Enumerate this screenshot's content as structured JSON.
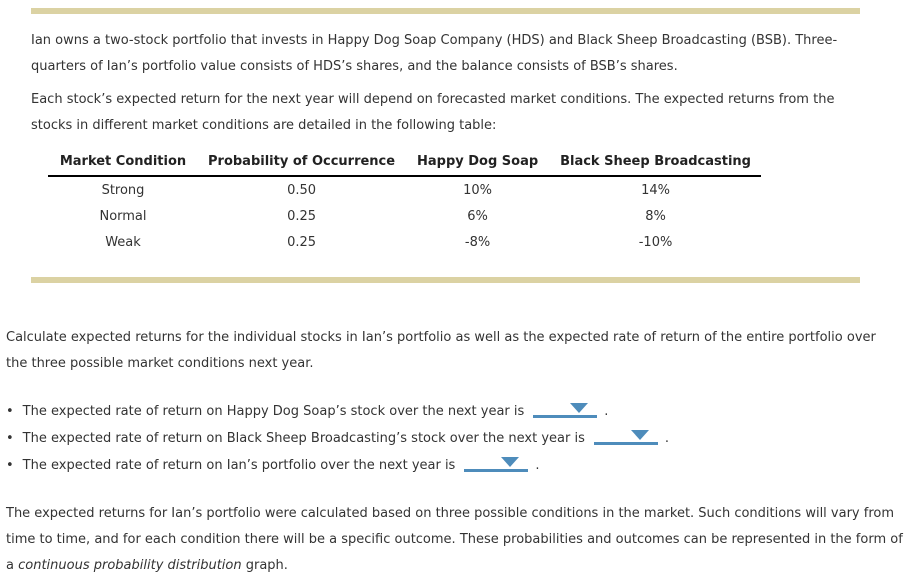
{
  "colors": {
    "divider_tan": "#dbd2a3",
    "dropdown_blue": "#4e8cbb",
    "text": "#333333"
  },
  "bullet_glyph": "•",
  "intro": {
    "p1": "Ian owns a two-stock portfolio that invests in Happy Dog Soap Company (HDS) and Black Sheep Broadcasting (BSB). Three-quarters of Ian’s portfolio value consists of HDS’s shares, and the balance consists of BSB’s shares.",
    "p2": "Each stock’s expected return for the next year will depend on forecasted market conditions. The expected returns from the stocks in different market conditions are detailed in the following table:"
  },
  "table": {
    "headers": [
      "Market Condition",
      "Probability of Occurrence",
      "Happy Dog Soap",
      "Black Sheep Broadcasting"
    ],
    "rows": [
      [
        "Strong",
        "0.50",
        "10%",
        "14%"
      ],
      [
        "Normal",
        "0.25",
        "6%",
        "8%"
      ],
      [
        "Weak",
        "0.25",
        "-8%",
        "-10%"
      ]
    ]
  },
  "question": {
    "prompt": "Calculate expected returns for the individual stocks in Ian’s portfolio as well as the expected rate of return of the entire portfolio over the three possible market conditions next year.",
    "bullets": [
      {
        "text": "The expected rate of return on Happy Dog Soap’s stock over the next year is",
        "dropdown_value": "",
        "suffix": "."
      },
      {
        "text": "The expected rate of return on Black Sheep Broadcasting’s stock over the next year is",
        "dropdown_value": "",
        "suffix": "."
      },
      {
        "text": "The expected rate of return on Ian’s portfolio over the next year is",
        "dropdown_value": "",
        "suffix": "."
      }
    ]
  },
  "closing": {
    "part1": "The expected returns for Ian’s portfolio were calculated based on three possible conditions in the market. Such conditions will vary from time to time, and for each condition there will be a specific outcome. These probabilities and outcomes can be represented in the form of a ",
    "italic": "continuous probability distribution",
    "part2": " graph."
  }
}
